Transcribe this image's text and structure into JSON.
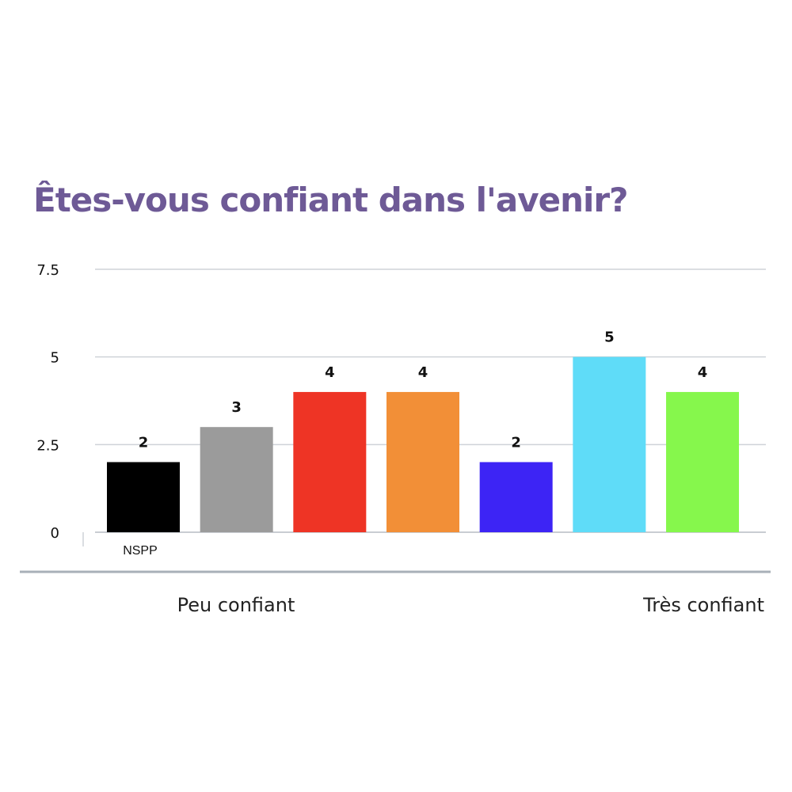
{
  "title_color": "#6e5a96",
  "chart_data": {
    "type": "bar",
    "title": "Êtes-vous confiant dans l'avenir?",
    "categories": [
      "NSPP",
      "",
      "",
      "",
      "",
      "",
      ""
    ],
    "values": [
      2,
      3,
      4,
      4,
      2,
      5,
      4
    ],
    "data_labels": [
      "2",
      "3",
      "4",
      "4",
      "2",
      "5",
      "4"
    ],
    "colors": [
      "#000000",
      "#9b9b9b",
      "#ee3425",
      "#f28f37",
      "#3d24f5",
      "#5fdcf8",
      "#86f74c"
    ],
    "ylim": [
      0,
      7.5
    ],
    "yticks": [
      {
        "value": 0,
        "label": "0"
      },
      {
        "value": 2.5,
        "label": "2.5"
      },
      {
        "value": 5,
        "label": "5"
      },
      {
        "value": 7.5,
        "label": "7.5"
      }
    ],
    "grid": true,
    "legend": "none",
    "scale_labels": {
      "low": "Peu confiant",
      "high": "Très confiant"
    }
  }
}
